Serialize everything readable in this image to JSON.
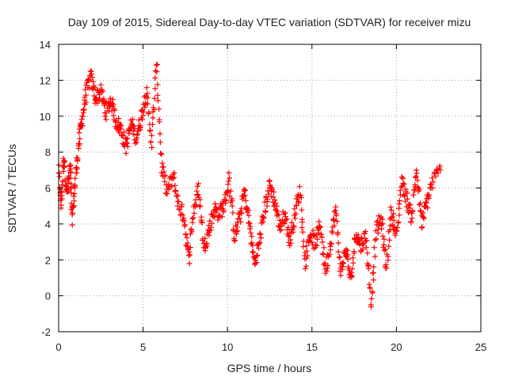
{
  "chart_data": {
    "type": "scatter",
    "title": "Day 109 of 2015, Sidereal Day-to-day VTEC variation (SDTVAR) for receiver mizu",
    "xlabel": "GPS time / hours",
    "ylabel": "SDTVAR / TECUs",
    "xlim": [
      0,
      25
    ],
    "ylim": [
      -2,
      14
    ],
    "x_ticks": [
      0,
      5,
      10,
      15,
      20,
      25
    ],
    "y_ticks": [
      -2,
      0,
      2,
      4,
      6,
      8,
      10,
      12,
      14
    ],
    "grid": true,
    "marker": "+",
    "color": "#ff0000",
    "series": [
      {
        "name": "SDTVAR",
        "trend": [
          [
            0.0,
            7.0
          ],
          [
            0.15,
            5.0
          ],
          [
            0.3,
            7.8
          ],
          [
            0.5,
            5.6
          ],
          [
            0.7,
            7.2
          ],
          [
            0.8,
            4.2
          ],
          [
            1.0,
            6.5
          ],
          [
            1.2,
            8.5
          ],
          [
            1.4,
            9.9
          ],
          [
            1.6,
            11.2
          ],
          [
            1.9,
            12.2
          ],
          [
            2.2,
            11.0
          ],
          [
            2.5,
            11.4
          ],
          [
            2.8,
            10.2
          ],
          [
            3.1,
            10.9
          ],
          [
            3.4,
            9.7
          ],
          [
            3.7,
            9.3
          ],
          [
            4.0,
            8.3
          ],
          [
            4.3,
            9.6
          ],
          [
            4.6,
            8.8
          ],
          [
            4.9,
            10.0
          ],
          [
            5.2,
            11.4
          ],
          [
            5.5,
            8.5
          ],
          [
            5.8,
            12.9
          ],
          [
            6.1,
            7.2
          ],
          [
            6.4,
            5.8
          ],
          [
            6.8,
            6.6
          ],
          [
            7.1,
            5.0
          ],
          [
            7.4,
            4.5
          ],
          [
            7.7,
            2.0
          ],
          [
            8.0,
            4.8
          ],
          [
            8.3,
            5.9
          ],
          [
            8.6,
            2.7
          ],
          [
            8.9,
            3.6
          ],
          [
            9.2,
            4.8
          ],
          [
            9.5,
            4.6
          ],
          [
            9.8,
            5.0
          ],
          [
            10.1,
            6.5
          ],
          [
            10.4,
            3.3
          ],
          [
            10.7,
            4.2
          ],
          [
            11.0,
            5.8
          ],
          [
            11.3,
            4.0
          ],
          [
            11.6,
            1.8
          ],
          [
            11.9,
            3.0
          ],
          [
            12.2,
            4.8
          ],
          [
            12.5,
            6.2
          ],
          [
            12.8,
            5.2
          ],
          [
            13.1,
            3.8
          ],
          [
            13.4,
            4.5
          ],
          [
            13.7,
            3.0
          ],
          [
            14.0,
            4.7
          ],
          [
            14.3,
            5.9
          ],
          [
            14.6,
            1.8
          ],
          [
            14.9,
            3.5
          ],
          [
            15.2,
            2.9
          ],
          [
            15.5,
            4.0
          ],
          [
            15.8,
            1.4
          ],
          [
            16.1,
            3.0
          ],
          [
            16.4,
            4.8
          ],
          [
            16.7,
            1.2
          ],
          [
            17.0,
            2.6
          ],
          [
            17.3,
            0.8
          ],
          [
            17.6,
            3.5
          ],
          [
            17.9,
            2.8
          ],
          [
            18.2,
            3.4
          ],
          [
            18.5,
            -0.4
          ],
          [
            18.8,
            3.6
          ],
          [
            19.1,
            4.3
          ],
          [
            19.4,
            1.5
          ],
          [
            19.7,
            4.8
          ],
          [
            20.0,
            3.2
          ],
          [
            20.3,
            6.5
          ],
          [
            20.6,
            5.4
          ],
          [
            20.9,
            4.4
          ],
          [
            21.2,
            7.0
          ],
          [
            21.5,
            4.0
          ],
          [
            21.8,
            5.2
          ],
          [
            22.1,
            6.3
          ],
          [
            22.6,
            7.0
          ]
        ]
      }
    ]
  }
}
